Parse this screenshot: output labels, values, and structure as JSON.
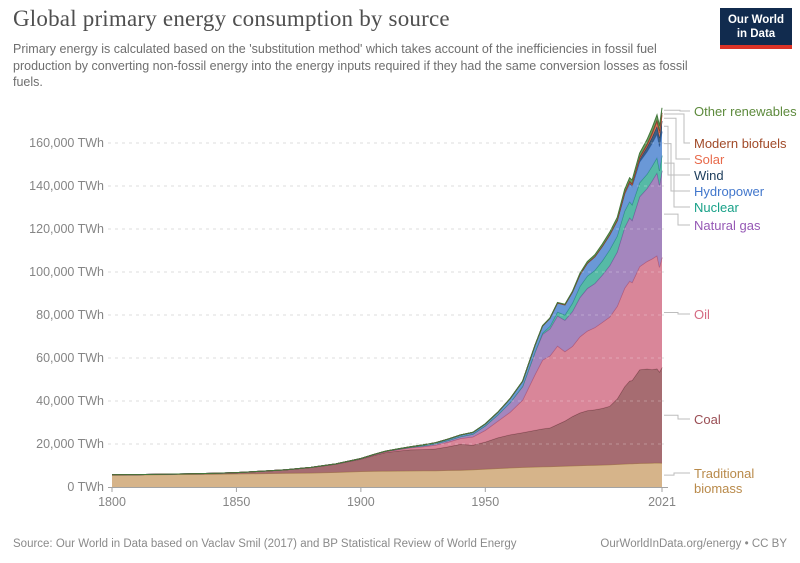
{
  "header": {
    "title": "Global primary energy consumption by source",
    "subtitle": "Primary energy is calculated based on the 'substitution method' which takes account of the inefficiencies in fossil fuel production by converting non-fossil energy into the energy inputs required if they had the same conversion losses as fossil fuels.",
    "logo": {
      "line1": "Our World",
      "line2": "in Data",
      "bg": "#112b4e",
      "accent": "#dc3327"
    }
  },
  "footer": {
    "source": "Source: Our World in Data based on Vaclav Smil (2017) and BP Statistical Review of World Energy",
    "link": "OurWorldInData.org/energy • CC BY"
  },
  "chart_data": {
    "type": "area",
    "stacked": true,
    "unit": "TWh",
    "xlim": [
      1800,
      2021
    ],
    "ylim": [
      0,
      178000
    ],
    "grid": "dashed-horizontal",
    "legend_position": "right",
    "x_ticks": [
      1800,
      1850,
      1900,
      1950,
      2021
    ],
    "y_ticks": [
      0,
      20000,
      40000,
      60000,
      80000,
      100000,
      120000,
      140000,
      160000
    ],
    "y_tick_labels": [
      "0 TWh",
      "20,000 TWh",
      "40,000 TWh",
      "60,000 TWh",
      "80,000 TWh",
      "100,000 TWh",
      "120,000 TWh",
      "140,000 TWh",
      "160,000 TWh"
    ],
    "years": [
      1800,
      1810,
      1820,
      1830,
      1840,
      1850,
      1860,
      1870,
      1880,
      1890,
      1900,
      1905,
      1910,
      1915,
      1920,
      1925,
      1930,
      1935,
      1940,
      1945,
      1950,
      1955,
      1960,
      1965,
      1970,
      1973,
      1976,
      1979,
      1982,
      1985,
      1988,
      1991,
      1994,
      1997,
      2000,
      2003,
      2006,
      2008,
      2009,
      2012,
      2015,
      2017,
      2019,
      2020,
      2021
    ],
    "series": [
      {
        "name": "traditional-biomass",
        "label": "Traditional biomass",
        "color": "#d3ae80",
        "edge": "#ab8551",
        "label_color": "#b98a4a",
        "values": [
          5556,
          5650,
          5750,
          5850,
          5950,
          6111,
          6250,
          6389,
          6528,
          6806,
          7222,
          7300,
          7400,
          7450,
          7500,
          7550,
          7600,
          7700,
          7800,
          8000,
          8333,
          8600,
          8900,
          9100,
          9300,
          9400,
          9500,
          9600,
          9700,
          9800,
          9950,
          10050,
          10150,
          10250,
          10350,
          10500,
          10700,
          10800,
          10850,
          11000,
          11050,
          11100,
          11200,
          11150,
          11100
        ]
      },
      {
        "name": "coal",
        "label": "Coal",
        "color": "#9e6065",
        "edge": "#78454b",
        "label_color": "#9a4e54",
        "values": [
          97,
          120,
          153,
          220,
          356,
          569,
          1061,
          1642,
          2542,
          3856,
          5728,
          7300,
          8656,
          9300,
          9833,
          9900,
          10125,
          11000,
          12100,
          11500,
          12603,
          14300,
          15442,
          16200,
          17067,
          17600,
          18000,
          19500,
          21000,
          23000,
          24500,
          25500,
          25800,
          26300,
          27230,
          30500,
          36000,
          38500,
          38700,
          43500,
          43900,
          43500,
          43800,
          42350,
          44473
        ]
      },
      {
        "name": "oil",
        "label": "Oil",
        "color": "#d67c90",
        "edge": "#b25570",
        "label_color": "#d56a82",
        "values": [
          0,
          0,
          0,
          0,
          0,
          0,
          2,
          11,
          33,
          91,
          181,
          280,
          397,
          600,
          889,
          1300,
          1756,
          2200,
          2654,
          3800,
          5444,
          7700,
          10504,
          15100,
          26000,
          32000,
          33500,
          36500,
          32300,
          32600,
          35400,
          37000,
          38200,
          40000,
          41500,
          43000,
          45800,
          46400,
          45500,
          48000,
          50000,
          51500,
          52600,
          48700,
          51170
        ]
      },
      {
        "name": "natural-gas",
        "label": "Natural gas",
        "color": "#9c7cb8",
        "edge": "#77549c",
        "label_color": "#9659b5",
        "values": [
          0,
          0,
          0,
          0,
          0,
          0,
          0,
          0,
          2,
          9,
          64,
          100,
          140,
          190,
          232,
          420,
          603,
          740,
          875,
          1300,
          2092,
          2900,
          4472,
          6300,
          10338,
          12000,
          12600,
          14000,
          14600,
          16200,
          18300,
          19800,
          20500,
          22000,
          23900,
          25300,
          28200,
          29500,
          28900,
          32500,
          33900,
          36200,
          38500,
          38100,
          40375
        ]
      },
      {
        "name": "nuclear",
        "label": "Nuclear",
        "color": "#48b49e",
        "edge": "#2b8f7d",
        "label_color": "#18a188",
        "values": [
          0,
          0,
          0,
          0,
          0,
          0,
          0,
          0,
          0,
          0,
          0,
          0,
          0,
          0,
          0,
          0,
          0,
          0,
          0,
          0,
          0,
          2,
          7,
          70,
          224,
          580,
          1200,
          1800,
          2400,
          3900,
          5100,
          5750,
          6100,
          6600,
          7323,
          7400,
          7650,
          7500,
          7300,
          6500,
          6700,
          6800,
          7000,
          6789,
          7031
        ]
      },
      {
        "name": "hydropower",
        "label": "Hydropower",
        "color": "#5d8fd4",
        "edge": "#3a6cba",
        "label_color": "#4277cc",
        "values": [
          0,
          0,
          0,
          0,
          0,
          0,
          0,
          0,
          1,
          3,
          47,
          80,
          120,
          200,
          300,
          420,
          520,
          640,
          740,
          800,
          890,
          1200,
          1800,
          2400,
          3050,
          3300,
          3700,
          4200,
          4700,
          5100,
          5500,
          5900,
          6300,
          6700,
          6870,
          7000,
          7900,
          8400,
          8500,
          9600,
          10400,
          10600,
          11000,
          11200,
          11183
        ]
      },
      {
        "name": "wind",
        "label": "Wind",
        "color": "#2d5179",
        "edge": "#1c3a5c",
        "label_color": "#1d3d5c",
        "values": [
          0,
          0,
          0,
          0,
          0,
          0,
          0,
          0,
          0,
          0,
          0,
          0,
          0,
          0,
          0,
          0,
          0,
          0,
          0,
          0,
          0,
          0,
          0,
          0,
          0,
          0,
          0,
          0,
          0,
          0,
          0,
          12,
          18,
          40,
          82,
          160,
          350,
          600,
          720,
          1380,
          2187,
          2900,
          3740,
          4190,
          4872
        ]
      },
      {
        "name": "solar",
        "label": "Solar",
        "color": "#e8805f",
        "edge": "#c65c3d",
        "label_color": "#e86a4b",
        "values": [
          0,
          0,
          0,
          0,
          0,
          0,
          0,
          0,
          0,
          0,
          0,
          0,
          0,
          0,
          0,
          0,
          0,
          0,
          0,
          0,
          0,
          0,
          0,
          0,
          0,
          0,
          0,
          0,
          0,
          0,
          0,
          0,
          0,
          0,
          0,
          5,
          15,
          40,
          60,
          255,
          674,
          1190,
          1840,
          2220,
          2702
        ]
      },
      {
        "name": "modern-biofuels",
        "label": "Modern biofuels",
        "color": "#9e4a3c",
        "edge": "#7a3126",
        "label_color": "#a14a28",
        "values": [
          0,
          0,
          0,
          0,
          0,
          0,
          0,
          0,
          0,
          0,
          0,
          0,
          0,
          0,
          0,
          0,
          0,
          0,
          0,
          0,
          0,
          0,
          0,
          0,
          20,
          25,
          35,
          60,
          90,
          100,
          105,
          120,
          150,
          170,
          187,
          280,
          450,
          600,
          650,
          780,
          880,
          1000,
          1100,
          1060,
          1140
        ]
      },
      {
        "name": "other-renewables",
        "label": "Other renewables",
        "color": "#5f9a55",
        "edge": "#42773b",
        "label_color": "#5d8a3c",
        "values": [
          0,
          0,
          0,
          0,
          0,
          0,
          0,
          0,
          0,
          0,
          1,
          2,
          4,
          6,
          8,
          10,
          15,
          20,
          25,
          28,
          30,
          45,
          60,
          80,
          100,
          120,
          150,
          180,
          220,
          300,
          500,
          720,
          800,
          950,
          1050,
          1200,
          1400,
          1500,
          1550,
          1750,
          2000,
          2150,
          2280,
          2300,
          2340
        ]
      }
    ]
  }
}
